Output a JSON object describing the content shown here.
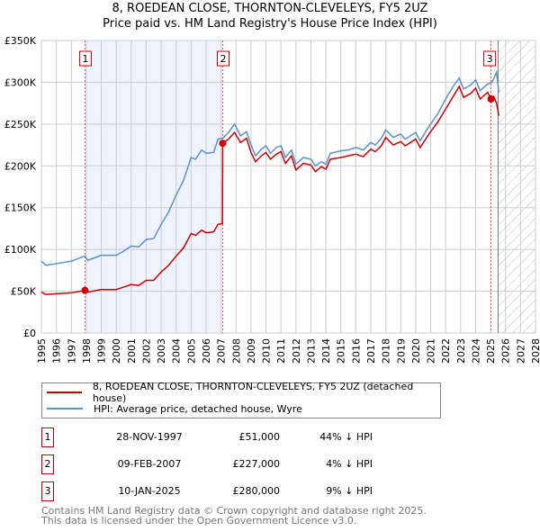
{
  "chart_data": {
    "type": "line",
    "title": "8, ROEDEAN CLOSE, THORNTON-CLEVELEYS, FY5 2UZ",
    "subtitle": "Price paid vs. HM Land Registry's House Price Index (HPI)",
    "xlim": [
      1995,
      2028
    ],
    "ylim": [
      0,
      350000
    ],
    "y_ticks": [
      {
        "v": 0,
        "label": "£0"
      },
      {
        "v": 50000,
        "label": "£50K"
      },
      {
        "v": 100000,
        "label": "£100K"
      },
      {
        "v": 150000,
        "label": "£150K"
      },
      {
        "v": 200000,
        "label": "£200K"
      },
      {
        "v": 250000,
        "label": "£250K"
      },
      {
        "v": 300000,
        "label": "£300K"
      },
      {
        "v": 350000,
        "label": "£350K"
      }
    ],
    "x_ticks": [
      "1995",
      "1996",
      "1997",
      "1998",
      "1999",
      "2000",
      "2001",
      "2002",
      "2003",
      "2004",
      "2005",
      "2006",
      "2007",
      "2008",
      "2009",
      "2010",
      "2011",
      "2012",
      "2013",
      "2014",
      "2015",
      "2016",
      "2017",
      "2018",
      "2019",
      "2020",
      "2021",
      "2022",
      "2023",
      "2024",
      "2025",
      "2026",
      "2027",
      "2028"
    ],
    "shaded_range": [
      1997.91,
      2007.11
    ],
    "forecast_from": 2025.5,
    "series": [
      {
        "name": "8, ROEDEAN CLOSE, THORNTON-CLEVELEYS, FY5 2UZ (detached house)",
        "color": "#cc0000",
        "x": [
          1995,
          1995.3,
          1996,
          1997,
          1997.9,
          1998.1,
          1999,
          2000,
          2000.5,
          2001,
          2001.5,
          2002,
          2002.5,
          2003,
          2003.5,
          2004,
          2004.5,
          2005,
          2005.3,
          2005.7,
          2006,
          2006.5,
          2006.8,
          2007.09,
          2007.11,
          2007.5,
          2007.9,
          2008.3,
          2008.7,
          2009,
          2009.3,
          2009.7,
          2010,
          2010.3,
          2010.7,
          2011,
          2011.3,
          2011.7,
          2012,
          2012.5,
          2013,
          2013.3,
          2013.7,
          2014,
          2014.3,
          2015,
          2015.5,
          2016,
          2016.5,
          2017,
          2017.3,
          2017.7,
          2018,
          2018.5,
          2019,
          2019.3,
          2020,
          2020.3,
          2020.7,
          2021,
          2021.5,
          2022,
          2022.5,
          2022.9,
          2023.2,
          2023.7,
          2024,
          2024.3,
          2024.8,
          2025.03,
          2025.2,
          2025.4,
          2025.55
        ],
        "values": [
          49000,
          46000,
          47000,
          48000,
          51000,
          49000,
          52000,
          52000,
          55000,
          58000,
          57000,
          63000,
          63000,
          73000,
          81000,
          92000,
          102000,
          119000,
          117000,
          123000,
          120000,
          121000,
          130000,
          131000,
          227000,
          232000,
          240000,
          228000,
          233000,
          216000,
          205000,
          212000,
          216000,
          208000,
          214000,
          217000,
          203000,
          212000,
          195000,
          203000,
          201000,
          193000,
          199000,
          196000,
          208000,
          210000,
          212000,
          214000,
          211000,
          220000,
          217000,
          224000,
          234000,
          225000,
          229000,
          224000,
          232000,
          222000,
          233000,
          241000,
          253000,
          268000,
          283000,
          295000,
          282000,
          287000,
          293000,
          280000,
          288000,
          280000,
          283000,
          275000,
          260000
        ]
      },
      {
        "name": "HPI: Average price, detached house, Wyre",
        "color": "#5b8fd4",
        "x": [
          1995,
          1995.3,
          1996,
          1997,
          1997.9,
          1998.1,
          1999,
          2000,
          2000.5,
          2001,
          2001.5,
          2002,
          2002.5,
          2003,
          2003.5,
          2004,
          2004.5,
          2005,
          2005.3,
          2005.7,
          2006,
          2006.5,
          2006.8,
          2007.1,
          2007.5,
          2007.9,
          2008.3,
          2008.7,
          2009,
          2009.3,
          2009.7,
          2010,
          2010.3,
          2010.7,
          2011,
          2011.3,
          2011.7,
          2012,
          2012.5,
          2013,
          2013.3,
          2013.7,
          2014,
          2014.3,
          2015,
          2015.5,
          2016,
          2016.5,
          2017,
          2017.3,
          2017.7,
          2018,
          2018.5,
          2019,
          2019.3,
          2020,
          2020.3,
          2020.7,
          2021,
          2021.5,
          2022,
          2022.5,
          2022.9,
          2023.2,
          2023.7,
          2024,
          2024.3,
          2024.8,
          2025.1,
          2025.4,
          2025.55
        ],
        "values": [
          86000,
          81000,
          83000,
          86000,
          92000,
          87000,
          93000,
          93000,
          98000,
          104000,
          103000,
          112000,
          113000,
          130000,
          145000,
          165000,
          183000,
          210000,
          208000,
          219000,
          215000,
          216000,
          232000,
          233000,
          240000,
          250000,
          236000,
          241000,
          225000,
          212000,
          220000,
          224000,
          215000,
          222000,
          224000,
          210000,
          219000,
          202000,
          210000,
          208000,
          200000,
          205000,
          202000,
          215000,
          218000,
          219000,
          222000,
          219000,
          228000,
          225000,
          233000,
          243000,
          234000,
          238000,
          232000,
          240000,
          230000,
          242000,
          250000,
          263000,
          280000,
          295000,
          305000,
          292000,
          297000,
          303000,
          290000,
          298000,
          300000,
          312000,
          288000
        ]
      }
    ],
    "sales": [
      {
        "n": "1",
        "x": 1997.91,
        "value": 51000,
        "date": "28-NOV-1997",
        "price": "£51,000",
        "hpi": "44% ↓ HPI"
      },
      {
        "n": "2",
        "x": 2007.11,
        "value": 227000,
        "date": "09-FEB-2007",
        "price": "£227,000",
        "hpi": "4% ↓ HPI"
      },
      {
        "n": "3",
        "x": 2025.03,
        "value": 280000,
        "date": "10-JAN-2025",
        "price": "£280,000",
        "hpi": "9% ↓ HPI"
      }
    ]
  },
  "footer": [
    "Contains HM Land Registry data © Crown copyright and database right 2025.",
    "This data is licensed under the Open Government Licence v3.0."
  ]
}
